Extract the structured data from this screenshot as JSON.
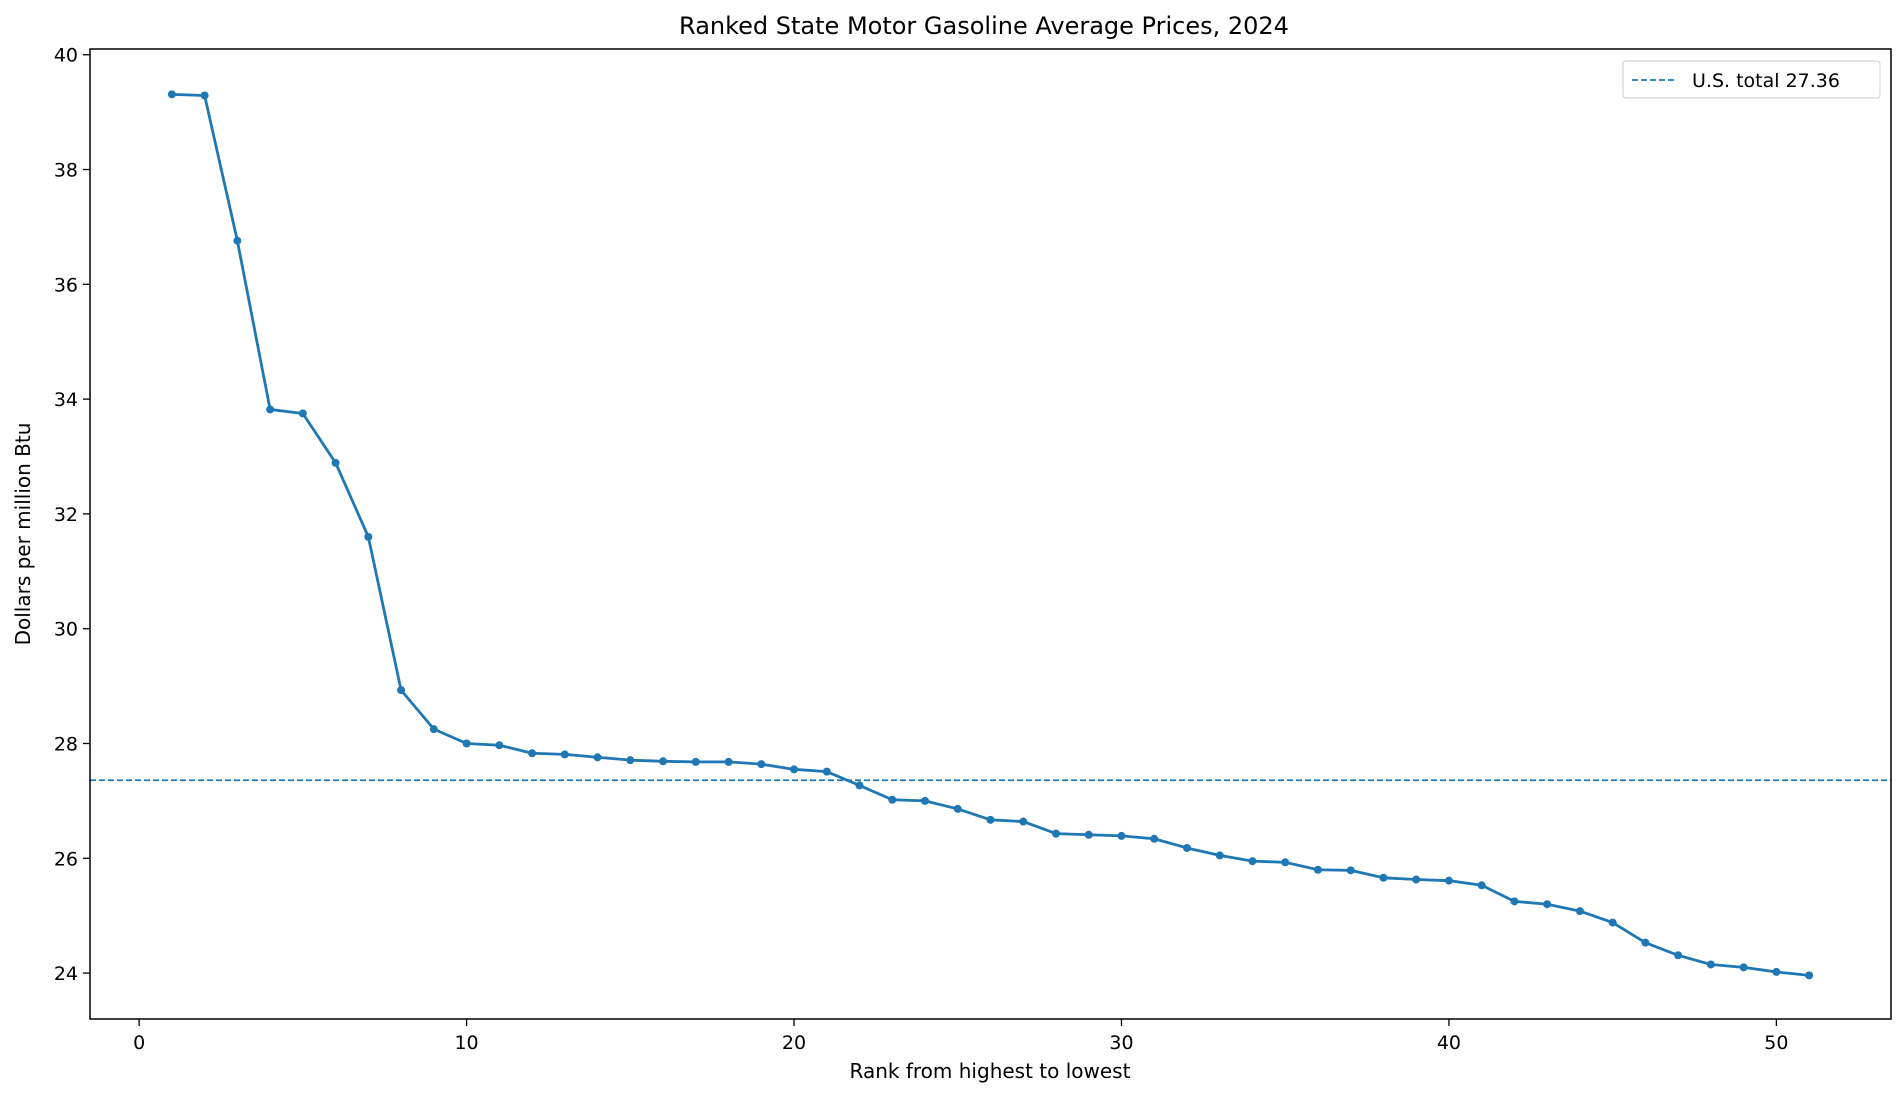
{
  "chart_data": {
    "type": "line",
    "title": "Ranked State Motor Gasoline Average Prices, 2024",
    "xlabel": "Rank from highest to lowest",
    "ylabel": "Dollars per million Btu",
    "xlim": [
      -1.5,
      53.5
    ],
    "ylim": [
      23.2,
      40.1
    ],
    "xticks": [
      0,
      10,
      20,
      30,
      40,
      50
    ],
    "yticks": [
      24,
      26,
      28,
      30,
      32,
      34,
      36,
      38,
      40
    ],
    "grid": false,
    "legend_position": "top-right",
    "line_color": "#1f77b4",
    "reference_line": {
      "label": "U.S. total 27.36",
      "value": 27.36,
      "style": "dashed"
    },
    "series": [
      {
        "x": [
          1,
          2,
          3,
          4,
          5,
          6,
          7,
          8,
          9,
          10,
          11,
          12,
          13,
          14,
          15,
          16,
          17,
          18,
          19,
          20,
          21,
          22,
          23,
          24,
          25,
          26,
          27,
          28,
          29,
          30,
          31,
          32,
          33,
          34,
          35,
          36,
          37,
          38,
          39,
          40,
          41,
          42,
          43,
          44,
          45,
          46,
          47,
          48,
          49,
          50,
          51
        ],
        "values": [
          39.31,
          39.29,
          36.76,
          33.82,
          33.75,
          32.89,
          31.6,
          28.93,
          28.25,
          28.0,
          27.97,
          27.83,
          27.81,
          27.76,
          27.71,
          27.69,
          27.68,
          27.68,
          27.64,
          27.55,
          27.51,
          27.27,
          27.02,
          27.0,
          26.86,
          26.67,
          26.64,
          26.43,
          26.41,
          26.39,
          26.34,
          26.18,
          26.05,
          25.95,
          25.93,
          25.8,
          25.79,
          25.66,
          25.63,
          25.61,
          25.53,
          25.25,
          25.2,
          25.08,
          24.88,
          24.53,
          24.31,
          24.15,
          24.1,
          24.02,
          23.96
        ]
      }
    ]
  }
}
